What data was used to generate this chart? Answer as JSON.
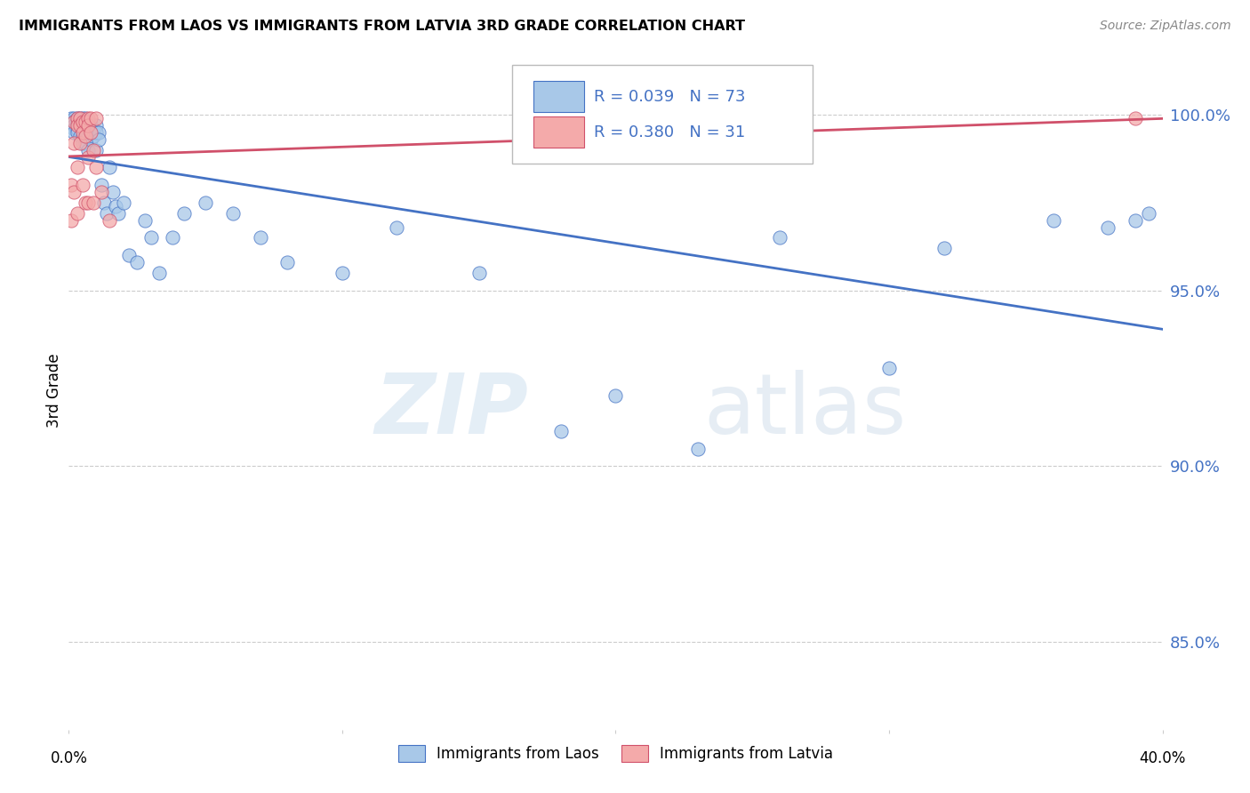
{
  "title": "IMMIGRANTS FROM LAOS VS IMMIGRANTS FROM LATVIA 3RD GRADE CORRELATION CHART",
  "source": "Source: ZipAtlas.com",
  "ylabel": "3rd Grade",
  "ytick_labels": [
    "85.0%",
    "90.0%",
    "95.0%",
    "100.0%"
  ],
  "ytick_values": [
    0.85,
    0.9,
    0.95,
    1.0
  ],
  "xlim": [
    0.0,
    0.4
  ],
  "ylim": [
    0.825,
    1.018
  ],
  "color_laos": "#a8c8e8",
  "color_latvia": "#f4aaaa",
  "trendline_laos": "#4472c4",
  "trendline_latvia": "#d0506a",
  "background": "#ffffff",
  "watermark_zip": "ZIP",
  "watermark_atlas": "atlas",
  "laos_x": [
    0.001,
    0.001,
    0.001,
    0.002,
    0.002,
    0.002,
    0.002,
    0.002,
    0.003,
    0.003,
    0.003,
    0.003,
    0.003,
    0.004,
    0.004,
    0.004,
    0.004,
    0.005,
    0.005,
    0.005,
    0.005,
    0.005,
    0.006,
    0.006,
    0.006,
    0.006,
    0.006,
    0.007,
    0.007,
    0.007,
    0.007,
    0.008,
    0.008,
    0.008,
    0.009,
    0.009,
    0.01,
    0.01,
    0.01,
    0.011,
    0.011,
    0.012,
    0.013,
    0.014,
    0.015,
    0.016,
    0.017,
    0.018,
    0.02,
    0.022,
    0.025,
    0.028,
    0.03,
    0.033,
    0.038,
    0.042,
    0.05,
    0.06,
    0.07,
    0.08,
    0.1,
    0.12,
    0.15,
    0.18,
    0.2,
    0.23,
    0.26,
    0.3,
    0.32,
    0.36,
    0.38,
    0.39,
    0.395
  ],
  "laos_y": [
    0.999,
    0.998,
    0.997,
    0.999,
    0.998,
    0.997,
    0.996,
    0.995,
    0.999,
    0.998,
    0.997,
    0.996,
    0.995,
    0.999,
    0.998,
    0.997,
    0.994,
    0.999,
    0.998,
    0.996,
    0.994,
    0.992,
    0.999,
    0.998,
    0.997,
    0.995,
    0.992,
    0.998,
    0.996,
    0.994,
    0.99,
    0.997,
    0.995,
    0.993,
    0.996,
    0.994,
    0.997,
    0.995,
    0.99,
    0.995,
    0.993,
    0.98,
    0.975,
    0.972,
    0.985,
    0.978,
    0.974,
    0.972,
    0.975,
    0.96,
    0.958,
    0.97,
    0.965,
    0.955,
    0.965,
    0.972,
    0.975,
    0.972,
    0.965,
    0.958,
    0.955,
    0.968,
    0.955,
    0.91,
    0.92,
    0.905,
    0.965,
    0.928,
    0.962,
    0.97,
    0.968,
    0.97,
    0.972
  ],
  "latvia_x": [
    0.001,
    0.001,
    0.002,
    0.002,
    0.002,
    0.003,
    0.003,
    0.003,
    0.003,
    0.004,
    0.004,
    0.004,
    0.005,
    0.005,
    0.005,
    0.006,
    0.006,
    0.006,
    0.007,
    0.007,
    0.007,
    0.007,
    0.008,
    0.008,
    0.009,
    0.009,
    0.01,
    0.01,
    0.012,
    0.015,
    0.39
  ],
  "latvia_y": [
    0.98,
    0.97,
    0.998,
    0.992,
    0.978,
    0.999,
    0.997,
    0.985,
    0.972,
    0.999,
    0.997,
    0.992,
    0.998,
    0.995,
    0.98,
    0.998,
    0.994,
    0.975,
    0.999,
    0.997,
    0.988,
    0.975,
    0.999,
    0.995,
    0.99,
    0.975,
    0.999,
    0.985,
    0.978,
    0.97,
    0.999
  ],
  "legend_items": [
    {
      "label": "R = 0.039   N = 73",
      "color": "#a8c8e8",
      "edge": "#4472c4"
    },
    {
      "label": "R = 0.380   N = 31",
      "color": "#f4aaaa",
      "edge": "#d0506a"
    }
  ]
}
